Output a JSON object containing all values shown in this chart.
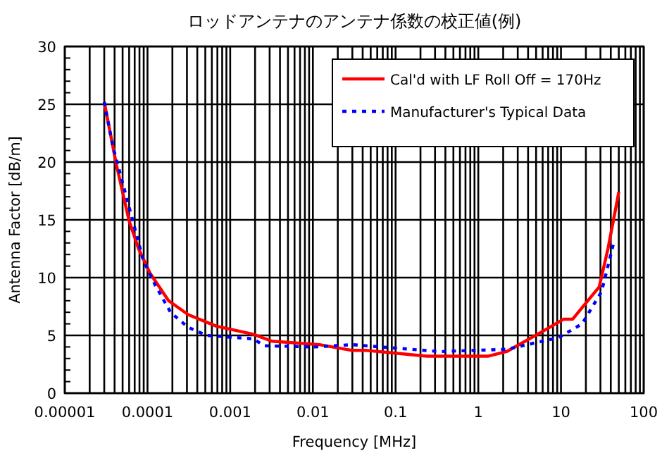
{
  "chart_data": {
    "type": "line",
    "title": "ロッドアンテナのアンテナ係数の校正値(例)",
    "xlabel": "Frequency [MHz]",
    "ylabel": "Antenna Factor [dB/m]",
    "log": "x",
    "grid": true,
    "legend": "top right",
    "xlim": [
      1e-05,
      100
    ],
    "xticks": [
      {
        "value": 1e-05,
        "label": "0.00001"
      },
      0.0001,
      0.001,
      0.01,
      0.1,
      1,
      10,
      100
    ],
    "ylim": [
      0,
      30
    ],
    "yticks": [
      0,
      5,
      10,
      15,
      20,
      25,
      30
    ],
    "series": [
      {
        "name": "Cal'd with LF Roll Off = 170Hz",
        "color": "#ff0000",
        "line_style": "solid",
        "x": [
          3e-05,
          4.2e-05,
          6e-05,
          7.8e-05,
          0.000107,
          0.00018,
          0.00031,
          0.00068,
          0.0019,
          0.0032,
          0.012,
          0.03,
          0.045,
          0.24,
          1.3,
          2.2,
          6.2,
          10.7,
          13.8,
          18,
          29,
          37,
          50
        ],
        "values": [
          25.2,
          19.8,
          14.9,
          12.5,
          10.4,
          8.0,
          6.8,
          5.8,
          5.1,
          4.5,
          4.2,
          3.7,
          3.7,
          3.2,
          3.2,
          3.6,
          5.4,
          6.4,
          6.4,
          7.4,
          9.2,
          12.5,
          17.4
        ]
      },
      {
        "name": "Manufacturer's Typical Data",
        "color": "#0000ff",
        "line_style": "dotted",
        "x": [
          3e-05,
          3.8e-05,
          8.9e-05,
          0.000123,
          0.00019,
          0.00031,
          0.00052,
          0.0019,
          0.0026,
          0.0105,
          0.03,
          0.34,
          2.2,
          9.3,
          18,
          31,
          43
        ],
        "values": [
          25.2,
          21.4,
          11.5,
          9.4,
          7.0,
          5.7,
          5.0,
          4.7,
          4.1,
          4.0,
          4.2,
          3.6,
          3.8,
          4.8,
          6.0,
          8.8,
          12.9
        ]
      }
    ]
  }
}
